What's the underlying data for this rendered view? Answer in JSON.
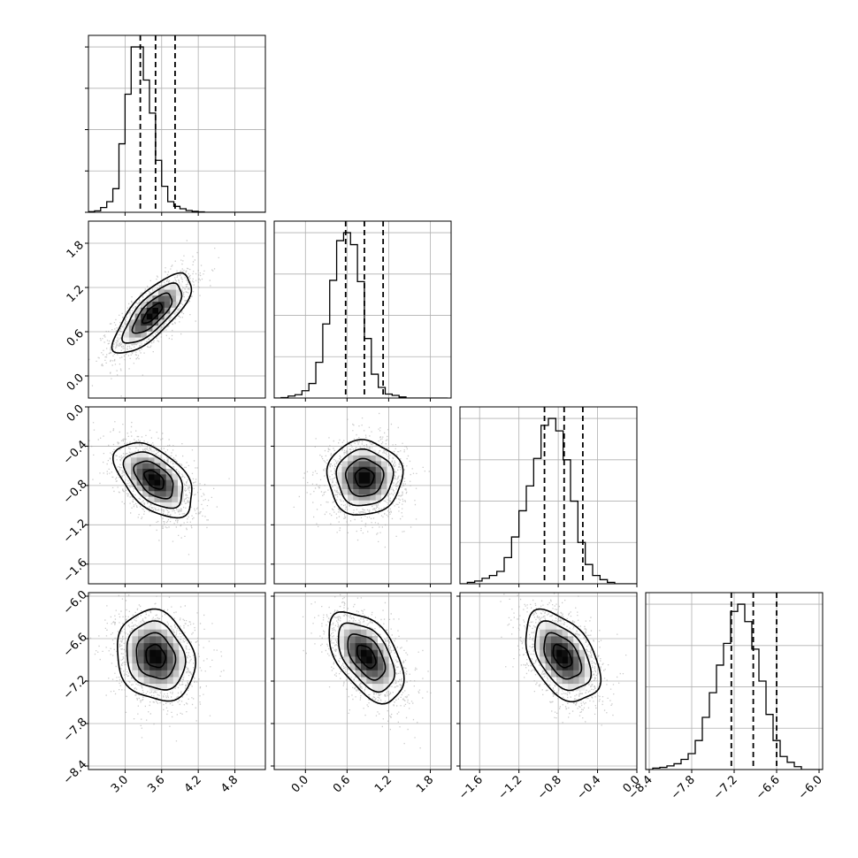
{
  "chart_data": [
    {
      "type": "histogram",
      "position": "row1-col1",
      "x_range": [
        2.4,
        5.3
      ],
      "x_grid": [
        3.0,
        3.6,
        4.2,
        4.8
      ],
      "grid": true,
      "bins_step": 0.1,
      "bin_start": 2.4,
      "counts": [
        0.5,
        1.2,
        4,
        9,
        20,
        58,
        100,
        140,
        140,
        112,
        84,
        44,
        22,
        9,
        5,
        3,
        1.5,
        0.8,
        0.4,
        0,
        0,
        0,
        0,
        0,
        0,
        0,
        0,
        0,
        0
      ],
      "quantiles": [
        3.25,
        3.5,
        3.82
      ]
    },
    {
      "type": "histogram",
      "position": "row2-col2",
      "x_range": [
        -0.45,
        2.1
      ],
      "x_grid": [
        0.0,
        0.6,
        1.2,
        1.8
      ],
      "grid": true,
      "bins_step": 0.1,
      "bin_start": -0.45,
      "counts": [
        0,
        0.3,
        1.5,
        2.5,
        5.5,
        11,
        27,
        56,
        89,
        119,
        125,
        116,
        88,
        45,
        18,
        8,
        3,
        2,
        0.8,
        0,
        0,
        0,
        0,
        0,
        0
      ],
      "quantiles": [
        0.58,
        0.85,
        1.12
      ]
    },
    {
      "type": "histogram",
      "position": "row3-col3",
      "x_range": [
        -1.8,
        0.0
      ],
      "x_grid": [
        -1.6,
        -1.2,
        -0.8,
        -0.4,
        0.0
      ],
      "grid": true,
      "bins_step": 0.075,
      "bin_start": -1.8,
      "counts": [
        0,
        1,
        2,
        4,
        6,
        9,
        19,
        34,
        53,
        71,
        91,
        115,
        120,
        111,
        90,
        60,
        30,
        14,
        6,
        3,
        1,
        0,
        0,
        0
      ],
      "quantiles": [
        -0.94,
        -0.74,
        -0.55
      ]
    },
    {
      "type": "histogram",
      "position": "row4-col4",
      "x_range": [
        -8.45,
        -5.95
      ],
      "x_grid": [
        -8.4,
        -7.8,
        -7.2,
        -6.6,
        -6.0
      ],
      "grid": true,
      "bins_step": 0.1,
      "bin_start": -8.45,
      "counts": [
        0,
        1,
        1.5,
        2.5,
        4,
        7,
        11,
        20,
        36,
        53,
        72,
        87,
        109,
        114,
        102,
        83,
        61,
        38,
        20,
        9,
        5,
        2,
        0,
        0,
        0
      ],
      "quantiles": [
        -7.24,
        -6.93,
        -6.6
      ]
    },
    {
      "type": "heatmap",
      "position": "row2-col1",
      "x_range": [
        2.4,
        5.3
      ],
      "y_range": [
        -0.3,
        2.1
      ],
      "center": [
        3.45,
        0.85
      ],
      "sigma": [
        0.32,
        0.27
      ],
      "correlation": 0.75,
      "x_grid": [
        3.0,
        3.6,
        4.2,
        4.8
      ],
      "y_grid": [
        0.0,
        0.6,
        1.2,
        1.8
      ]
    },
    {
      "type": "heatmap",
      "position": "row3-col1",
      "x_range": [
        2.4,
        5.3
      ],
      "y_range": [
        -1.8,
        0.0
      ],
      "center": [
        3.48,
        -0.74
      ],
      "sigma": [
        0.32,
        0.19
      ],
      "correlation": -0.5,
      "x_grid": [
        3.0,
        3.6,
        4.2,
        4.8
      ],
      "y_grid": [
        -1.6,
        -1.2,
        -0.8,
        -0.4,
        0.0
      ]
    },
    {
      "type": "heatmap",
      "position": "row3-col2",
      "x_range": [
        -0.45,
        2.1
      ],
      "y_range": [
        -1.8,
        0.0
      ],
      "center": [
        0.85,
        -0.72
      ],
      "sigma": [
        0.27,
        0.19
      ],
      "correlation": 0.0,
      "x_grid": [
        0.0,
        0.6,
        1.2,
        1.8
      ],
      "y_grid": [
        -1.6,
        -1.2,
        -0.8,
        -0.4,
        0.0
      ]
    },
    {
      "type": "heatmap",
      "position": "row4-col1",
      "x_range": [
        2.4,
        5.3
      ],
      "y_range": [
        -8.45,
        -5.95
      ],
      "center": [
        3.5,
        -6.85
      ],
      "sigma": [
        0.32,
        0.32
      ],
      "correlation": -0.15,
      "x_grid": [
        3.0,
        3.6,
        4.2,
        4.8
      ],
      "y_grid": [
        -8.4,
        -7.8,
        -7.2,
        -6.6,
        -6.0
      ]
    },
    {
      "type": "heatmap",
      "position": "row4-col2",
      "x_range": [
        -0.45,
        2.1
      ],
      "y_range": [
        -8.45,
        -5.95
      ],
      "center": [
        0.88,
        -6.85
      ],
      "sigma": [
        0.27,
        0.32
      ],
      "correlation": -0.5,
      "x_grid": [
        0.0,
        0.6,
        1.2,
        1.8
      ],
      "y_grid": [
        -8.4,
        -7.8,
        -7.2,
        -6.6,
        -6.0
      ]
    },
    {
      "type": "heatmap",
      "position": "row4-col3",
      "x_range": [
        -1.8,
        0.0
      ],
      "y_range": [
        -8.45,
        -5.95
      ],
      "center": [
        -0.76,
        -6.85
      ],
      "sigma": [
        0.19,
        0.32
      ],
      "correlation": -0.45,
      "x_grid": [
        -1.6,
        -1.2,
        -0.8,
        -0.4,
        0.0
      ],
      "y_grid": [
        -8.4,
        -7.8,
        -7.2,
        -6.6,
        -6.0
      ]
    }
  ],
  "axes": {
    "x_tick_labels": [
      [
        "3.0",
        "3.6",
        "4.2",
        "4.8"
      ],
      [
        "0.0",
        "0.6",
        "1.2",
        "1.8"
      ],
      [
        "−1.6",
        "−1.2",
        "−0.8",
        "−0.4",
        "0.0"
      ],
      [
        "−8.4",
        "−7.8",
        "−7.2",
        "−6.6",
        "−6.0"
      ]
    ],
    "y_tick_labels": [
      [],
      [
        "0.0",
        "0.6",
        "1.2",
        "1.8"
      ],
      [
        "−1.6",
        "−1.2",
        "−0.8",
        "−0.4",
        "0.0"
      ],
      [
        "−8.4",
        "−7.8",
        "−7.2",
        "−6.6",
        "−6.0"
      ]
    ]
  },
  "colors": {
    "hist_line": "#000000",
    "grid": "#b0b0b0",
    "density_dark": "#000000",
    "density_light": "#ffffff",
    "scatter": "#a0a0a0"
  }
}
